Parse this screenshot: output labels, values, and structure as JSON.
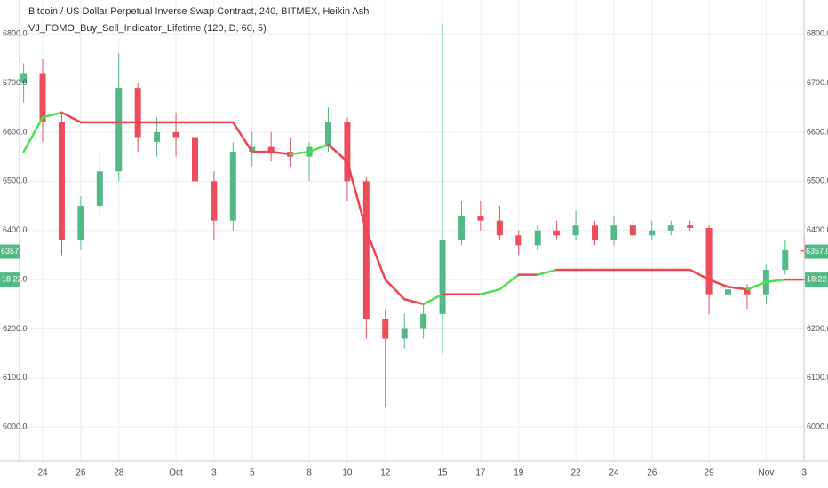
{
  "chart_data": {
    "type": "candlestick",
    "title": "Bitcoin / US Dollar Perpetual Inverse Swap Contract, 240, BITMEX, Heikin Ashi",
    "subtitle": "VJ_FOMO_Buy_Sell_Indicator_Lifetime (120, D, 60, 5)",
    "categories": [
      null,
      "24",
      null,
      "26",
      null,
      "28",
      null,
      null,
      "Oct",
      null,
      "3",
      null,
      "5",
      null,
      null,
      "8",
      null,
      "10",
      null,
      "12",
      null,
      null,
      "15",
      null,
      "17",
      null,
      "19",
      null,
      null,
      "22",
      null,
      "24",
      null,
      "26",
      null,
      null,
      "29",
      null,
      null,
      "Nov",
      null,
      "3"
    ],
    "open": [
      6700,
      6720,
      6620,
      6380,
      6450,
      6520,
      6690,
      6580,
      6600,
      6590,
      6500,
      6420,
      6560,
      6570,
      6560,
      6550,
      6570,
      6620,
      6500,
      6220,
      6180,
      6200,
      6230,
      6380,
      6430,
      6420,
      6390,
      6370,
      6400,
      6390,
      6410,
      6380,
      6410,
      6390,
      6400,
      6410,
      6405,
      6270,
      6280,
      6270,
      6320,
      6360
    ],
    "high": [
      6740,
      6750,
      6640,
      6470,
      6560,
      6760,
      6700,
      6630,
      6640,
      6600,
      6520,
      6580,
      6600,
      6600,
      6590,
      6580,
      6650,
      6630,
      6510,
      6240,
      6230,
      6250,
      6820,
      6460,
      6460,
      6450,
      6400,
      6410,
      6420,
      6440,
      6420,
      6430,
      6420,
      6420,
      6420,
      6420,
      6410,
      6310,
      6290,
      6330,
      6380,
      6390
    ],
    "low": [
      6660,
      6580,
      6350,
      6360,
      6430,
      6500,
      6560,
      6550,
      6550,
      6480,
      6380,
      6400,
      6530,
      6540,
      6530,
      6500,
      6560,
      6460,
      6180,
      6040,
      6160,
      6180,
      6150,
      6370,
      6400,
      6380,
      6350,
      6360,
      6380,
      6380,
      6370,
      6370,
      6380,
      6380,
      6390,
      6400,
      6230,
      6240,
      6240,
      6250,
      6310,
      6340
    ],
    "close": [
      6720,
      6620,
      6380,
      6450,
      6520,
      6690,
      6590,
      6600,
      6590,
      6500,
      6420,
      6560,
      6570,
      6560,
      6550,
      6570,
      6620,
      6500,
      6220,
      6180,
      6200,
      6230,
      6380,
      6430,
      6420,
      6390,
      6370,
      6400,
      6390,
      6410,
      6380,
      6410,
      6390,
      6400,
      6410,
      6405,
      6270,
      6280,
      6270,
      6320,
      6360,
      6357
    ],
    "up_color": "#53b987",
    "down_color": "#eb4d5c",
    "indicator": {
      "values": [
        6560,
        6630,
        6640,
        6620,
        6620,
        6620,
        6620,
        6620,
        6620,
        6620,
        6620,
        6620,
        6560,
        6560,
        6555,
        6560,
        6575,
        6540,
        6400,
        6300,
        6260,
        6250,
        6270,
        6270,
        6270,
        6280,
        6310,
        6310,
        6320,
        6320,
        6320,
        6320,
        6320,
        6320,
        6320,
        6320,
        6300,
        6285,
        6280,
        6295,
        6300,
        6300
      ],
      "up_color": "#4ee04a",
      "down_color": "#f0434f"
    },
    "last_price": {
      "value": 6357,
      "label": "6357.0"
    },
    "countdown": "18:22",
    "ylim": [
      5930,
      6869
    ],
    "yticks": [
      {
        "value": 6000,
        "label": "6000.0"
      },
      {
        "value": 6100,
        "label": "6100.0"
      },
      {
        "value": 6200,
        "label": "6200.0"
      },
      {
        "value": 6300,
        "label": "6300.0"
      },
      {
        "value": 6400,
        "label": "6400.0"
      },
      {
        "value": 6500,
        "label": "6500.0"
      },
      {
        "value": 6600,
        "label": "6600.0"
      },
      {
        "value": 6700,
        "label": "6700.0"
      },
      {
        "value": 6800,
        "label": "6800.0"
      }
    ],
    "grid": true
  }
}
